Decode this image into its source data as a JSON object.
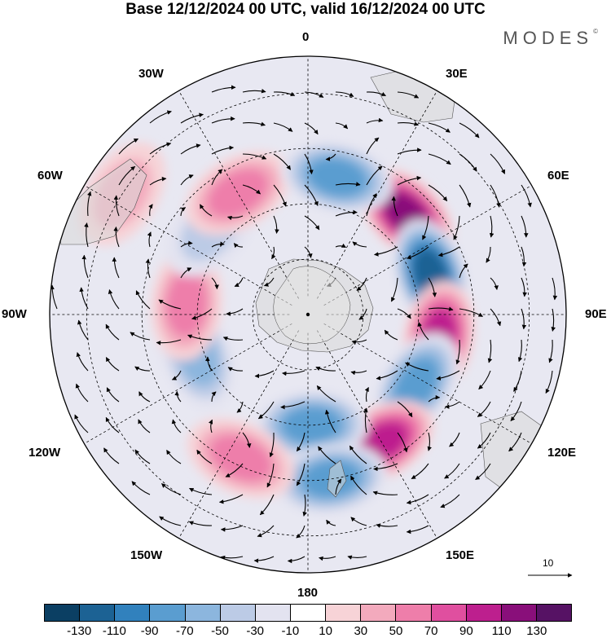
{
  "title": "Base 12/12/2024 00 UTC, valid 16/12/2024 00 UTC",
  "brand": "MODES",
  "brand_mark": "©",
  "projection": "south-polar-stereographic",
  "longitude_labels": {
    "lon_0": "0",
    "lon_30e": "30E",
    "lon_60e": "60E",
    "lon_90e": "90E",
    "lon_120e": "120E",
    "lon_150e": "150E",
    "lon_180": "180",
    "lon_150w": "150W",
    "lon_120w": "120W",
    "lon_90w": "90W",
    "lon_60w": "60W",
    "lon_30w": "30W"
  },
  "reference_vector": {
    "label": "10",
    "magnitude": 10
  },
  "colorbar": {
    "ticks": [
      "-130",
      "-110",
      "-90",
      "-70",
      "-50",
      "-30",
      "-10",
      "10",
      "30",
      "50",
      "70",
      "90",
      "110",
      "130"
    ],
    "colors": [
      "#0b3f63",
      "#1c6294",
      "#3181bd",
      "#5a9dd0",
      "#8cb6de",
      "#bccbe6",
      "#e3e3f0",
      "#ffffff",
      "#f7d3d7",
      "#f3aabd",
      "#ee7eaa",
      "#e04f9f",
      "#bd1f8e",
      "#890f7a",
      "#561264"
    ]
  },
  "anomaly_centers": [
    {
      "lon": 45,
      "lat": -52,
      "value": 110
    },
    {
      "lon": 72,
      "lat": -55,
      "value": -110
    },
    {
      "lon": 100,
      "lat": -54,
      "value": 90
    },
    {
      "lon": 123,
      "lat": -55,
      "value": -70
    },
    {
      "lon": 150,
      "lat": -50,
      "value": 90
    },
    {
      "lon": 178,
      "lat": -60,
      "value": -70
    },
    {
      "lon": 172,
      "lat": -45,
      "value": -70
    },
    {
      "lon": -155,
      "lat": -47,
      "value": 50
    },
    {
      "lon": -110,
      "lat": -58,
      "value": -50
    },
    {
      "lon": -85,
      "lat": -57,
      "value": 50
    },
    {
      "lon": -48,
      "lat": -55,
      "value": -30
    },
    {
      "lon": -30,
      "lat": -52,
      "value": 50
    },
    {
      "lon": 12,
      "lat": -52,
      "value": -70
    },
    {
      "lon": -57,
      "lat": -30,
      "value": 30
    }
  ]
}
